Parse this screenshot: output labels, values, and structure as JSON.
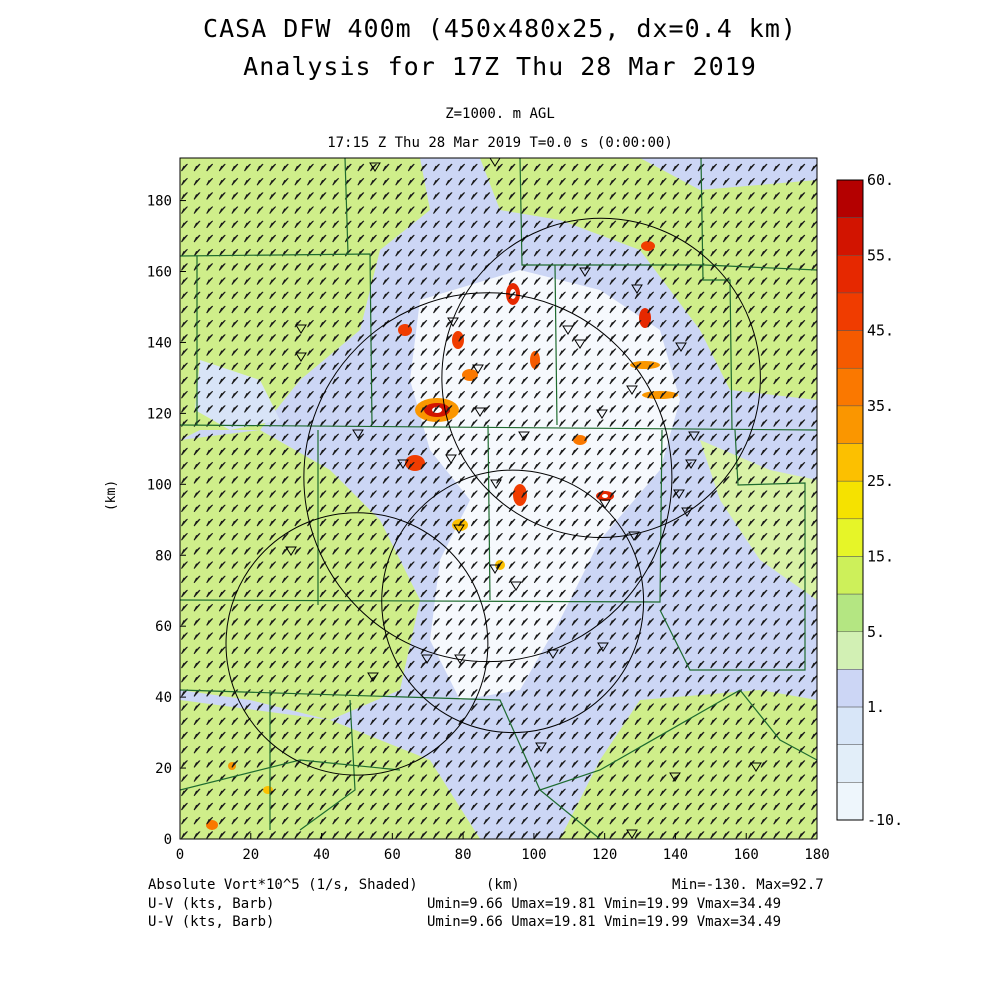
{
  "title": {
    "line1": "CASA DFW 400m (450x480x25, dx=0.4 km)",
    "line2": "Analysis for 17Z Thu 28 Mar 2019",
    "level": "Z=1000. m AGL",
    "time": "17:15 Z Thu 28 Mar 2019    T=0.0 s (0:00:00)"
  },
  "axes": {
    "xlabel": "(km)",
    "ylabel": "(km)",
    "xticks": [
      "0",
      "20",
      "40",
      "60",
      "80",
      "100",
      "120",
      "140",
      "160",
      "180"
    ],
    "yticks": [
      "0",
      "20",
      "40",
      "60",
      "80",
      "100",
      "120",
      "140",
      "160",
      "180"
    ],
    "xlim": [
      0,
      180
    ],
    "ylim": [
      0,
      192
    ]
  },
  "colorbar": {
    "labels": [
      "60.",
      "55.",
      "45.",
      "35.",
      "25.",
      "15.",
      "5.",
      "1.",
      "-10."
    ],
    "colors": [
      "#b40000",
      "#d21400",
      "#e62800",
      "#f03c00",
      "#f55a00",
      "#fa7800",
      "#fa9600",
      "#fcc000",
      "#f5e200",
      "#e6f528",
      "#cdf05a",
      "#b4e682",
      "#d2f0b4",
      "#ccd6f5",
      "#d8e6f8",
      "#e2eef9",
      "#eef6fc"
    ]
  },
  "footer": {
    "field_label": "Absolute Vort*10^5 (1/s, Shaded)",
    "x_unit": "(km)",
    "minmax": "Min=-130. Max=92.7",
    "uv1_label": "U-V (kts, Barb)",
    "uv1_stats": "Umin=9.66 Umax=19.81 Vmin=19.99 Vmax=34.49",
    "uv2_label": "U-V (kts, Barb)",
    "uv2_stats": "Umin=9.66 Umax=19.81 Vmin=19.99 Vmax=34.49"
  },
  "radar_rings": [
    {
      "x": 87,
      "y": 102,
      "r": 52
    },
    {
      "x": 94,
      "y": 67,
      "r": 37
    },
    {
      "x": 50,
      "y": 55,
      "r": 37
    },
    {
      "x": 119,
      "y": 130,
      "r": 45
    }
  ]
}
